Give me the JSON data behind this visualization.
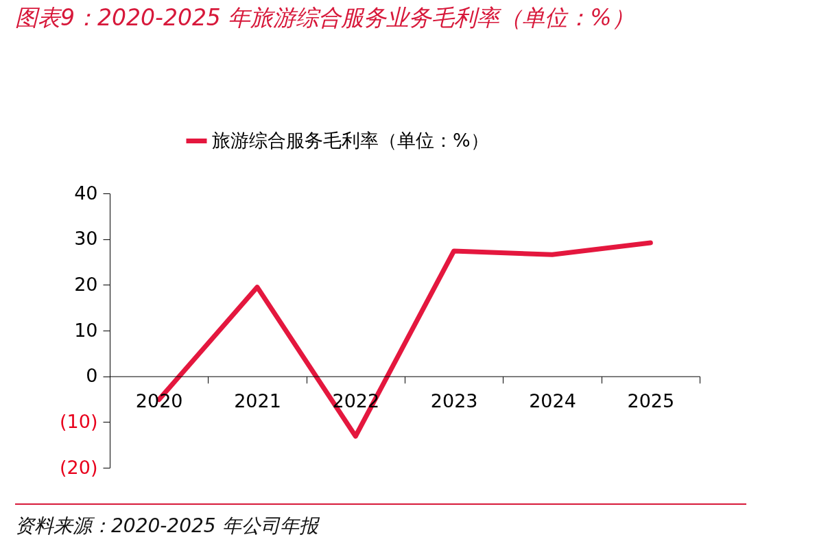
{
  "chart_data": {
    "type": "line",
    "title": "图表9：2020-2025 年旅游综合服务业务毛利率（单位：%）",
    "categories": [
      "2020",
      "2021",
      "2022",
      "2023",
      "2024",
      "2025"
    ],
    "series": [
      {
        "name": "旅游综合服务毛利率（单位：%）",
        "color": "#e4173e",
        "values": [
          -5.1,
          19.5,
          -13.1,
          27.4,
          26.6,
          29.2
        ]
      }
    ],
    "ylim": [
      -20,
      40
    ],
    "yticks": [
      {
        "value": -20,
        "label": "(20)"
      },
      {
        "value": -10,
        "label": "(10)"
      },
      0,
      10,
      20,
      30,
      40
    ],
    "grid": false,
    "legend": "top",
    "marker": "none",
    "line_style": "solid",
    "annotations": [
      "资料来源：2020-2025 年公司年报"
    ]
  }
}
